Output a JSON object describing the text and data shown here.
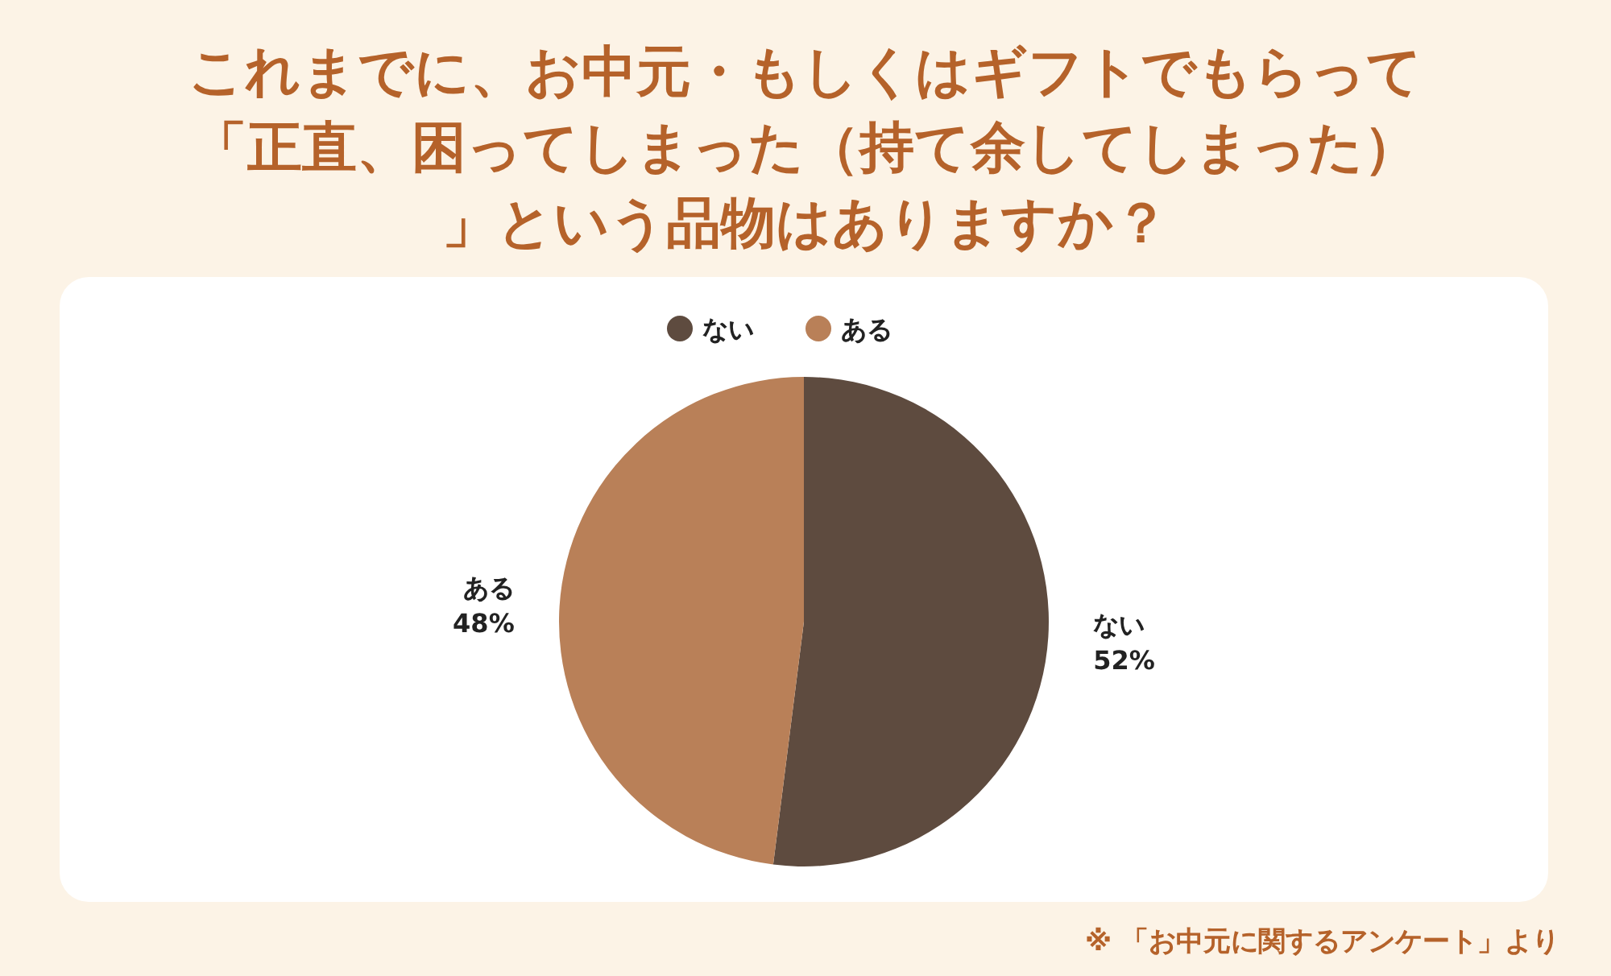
{
  "chart_data": {
    "type": "pie",
    "title": "これまでに、お中元・もしくはギフトでもらって「正直、困ってしまった（持て余してしまった）」という品物はありますか？",
    "categories": [
      "ない",
      "ある"
    ],
    "values": [
      52,
      48
    ],
    "colors": [
      "#5e4b3f",
      "#b98058"
    ],
    "value_labels": [
      "52%",
      "48%"
    ],
    "legend": "top",
    "annotations": [
      "※ 「お中元に関するアンケート」より"
    ]
  }
}
